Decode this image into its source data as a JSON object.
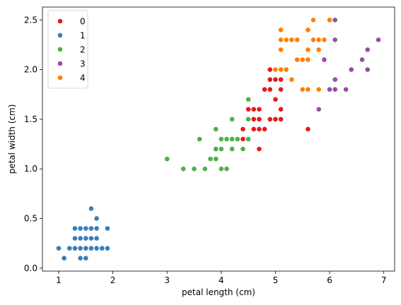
{
  "chart_data": {
    "type": "scatter",
    "title": "",
    "xlabel": "petal length (cm)",
    "ylabel": "petal width (cm)",
    "xlim": [
      0.7,
      7.2
    ],
    "ylim": [
      -0.03,
      2.63
    ],
    "x_ticks": [
      1,
      2,
      3,
      4,
      5,
      6,
      7
    ],
    "x_tick_labels": [
      "1",
      "2",
      "3",
      "4",
      "5",
      "6",
      "7"
    ],
    "y_ticks": [
      0.0,
      0.5,
      1.0,
      1.5,
      2.0,
      2.5
    ],
    "y_tick_labels": [
      "0.0",
      "0.5",
      "1.0",
      "1.5",
      "2.0",
      "2.5"
    ],
    "grid": false,
    "legend_placement": "top-left",
    "series": [
      {
        "name": "0",
        "color": "#e41a1c",
        "points": [
          [
            4.7,
            1.4
          ],
          [
            4.5,
            1.5
          ],
          [
            4.9,
            1.5
          ],
          [
            4.6,
            1.5
          ],
          [
            4.7,
            1.6
          ],
          [
            4.4,
            1.4
          ],
          [
            4.8,
            1.8
          ],
          [
            4.9,
            1.5
          ],
          [
            4.8,
            1.4
          ],
          [
            5.0,
            1.7
          ],
          [
            4.5,
            1.6
          ],
          [
            4.7,
            1.5
          ],
          [
            4.4,
            1.3
          ],
          [
            4.6,
            1.4
          ],
          [
            4.3,
            1.3
          ],
          [
            4.8,
            1.8
          ],
          [
            4.9,
            1.8
          ],
          [
            5.6,
            1.4
          ],
          [
            5.1,
            1.5
          ],
          [
            5.0,
            1.5
          ],
          [
            4.9,
            2.0
          ],
          [
            4.8,
            1.8
          ],
          [
            5.0,
            2.0
          ],
          [
            5.1,
            1.8
          ],
          [
            4.7,
            1.2
          ],
          [
            4.4,
            1.4
          ],
          [
            4.9,
            1.9
          ],
          [
            5.1,
            1.6
          ],
          [
            5.0,
            1.9
          ],
          [
            4.6,
            1.6
          ],
          [
            5.1,
            1.9
          ]
        ]
      },
      {
        "name": "1",
        "color": "#377eb8",
        "points": [
          [
            1.4,
            0.2
          ],
          [
            1.3,
            0.2
          ],
          [
            1.5,
            0.2
          ],
          [
            1.7,
            0.4
          ],
          [
            1.4,
            0.3
          ],
          [
            1.5,
            0.1
          ],
          [
            1.6,
            0.2
          ],
          [
            1.4,
            0.1
          ],
          [
            1.1,
            0.1
          ],
          [
            1.2,
            0.2
          ],
          [
            1.0,
            0.2
          ],
          [
            1.7,
            0.3
          ],
          [
            1.9,
            0.2
          ],
          [
            1.6,
            0.4
          ],
          [
            1.5,
            0.4
          ],
          [
            1.3,
            0.3
          ],
          [
            1.5,
            0.3
          ],
          [
            1.4,
            0.4
          ],
          [
            1.6,
            0.6
          ],
          [
            1.9,
            0.4
          ],
          [
            1.6,
            0.2
          ],
          [
            1.7,
            0.5
          ],
          [
            1.5,
            0.2
          ],
          [
            1.3,
            0.4
          ],
          [
            1.4,
            0.3
          ],
          [
            1.6,
            0.3
          ],
          [
            1.8,
            0.2
          ],
          [
            1.7,
            0.2
          ]
        ]
      },
      {
        "name": "2",
        "color": "#4daf4a",
        "points": [
          [
            4.5,
            1.5
          ],
          [
            4.0,
            1.3
          ],
          [
            3.3,
            1.0
          ],
          [
            3.9,
            1.4
          ],
          [
            3.5,
            1.0
          ],
          [
            4.2,
            1.5
          ],
          [
            4.0,
            1.0
          ],
          [
            3.6,
            1.3
          ],
          [
            4.5,
            1.7
          ],
          [
            4.1,
            1.0
          ],
          [
            3.9,
            1.1
          ],
          [
            4.0,
            1.2
          ],
          [
            4.1,
            1.3
          ],
          [
            3.0,
            1.1
          ],
          [
            3.8,
            1.1
          ],
          [
            3.7,
            1.0
          ],
          [
            4.3,
            1.3
          ],
          [
            4.2,
            1.2
          ],
          [
            4.2,
            1.3
          ],
          [
            4.4,
            1.2
          ],
          [
            4.5,
            1.3
          ],
          [
            3.9,
            1.2
          ],
          [
            4.1,
            1.3
          ],
          [
            4.2,
            1.3
          ]
        ]
      },
      {
        "name": "3",
        "color": "#984ea3",
        "points": [
          [
            6.1,
            2.5
          ],
          [
            6.0,
            2.5
          ],
          [
            6.9,
            2.3
          ],
          [
            6.7,
            2.2
          ],
          [
            6.6,
            2.1
          ],
          [
            6.1,
            2.3
          ],
          [
            5.8,
            1.6
          ],
          [
            6.1,
            1.9
          ],
          [
            6.4,
            2.0
          ],
          [
            6.0,
            1.8
          ],
          [
            6.3,
            1.8
          ],
          [
            5.9,
            2.1
          ],
          [
            6.7,
            2.0
          ],
          [
            6.1,
            1.8
          ]
        ]
      },
      {
        "name": "4",
        "color": "#ff7f00",
        "points": [
          [
            5.6,
            2.4
          ],
          [
            5.7,
            2.5
          ],
          [
            5.1,
            2.3
          ],
          [
            5.3,
            2.3
          ],
          [
            5.1,
            2.4
          ],
          [
            5.8,
            2.2
          ],
          [
            5.6,
            2.2
          ],
          [
            5.9,
            2.3
          ],
          [
            5.5,
            2.1
          ],
          [
            5.6,
            2.1
          ],
          [
            5.4,
            2.1
          ],
          [
            5.2,
            2.3
          ],
          [
            5.0,
            2.0
          ],
          [
            5.1,
            2.0
          ],
          [
            5.3,
            1.9
          ],
          [
            5.5,
            1.8
          ],
          [
            5.6,
            1.8
          ],
          [
            5.8,
            1.8
          ],
          [
            5.1,
            2.2
          ],
          [
            5.2,
            2.0
          ],
          [
            6.0,
            2.5
          ],
          [
            5.4,
            2.3
          ],
          [
            5.5,
            2.1
          ],
          [
            5.7,
            2.3
          ],
          [
            5.6,
            2.1
          ],
          [
            5.8,
            2.3
          ]
        ]
      }
    ]
  }
}
